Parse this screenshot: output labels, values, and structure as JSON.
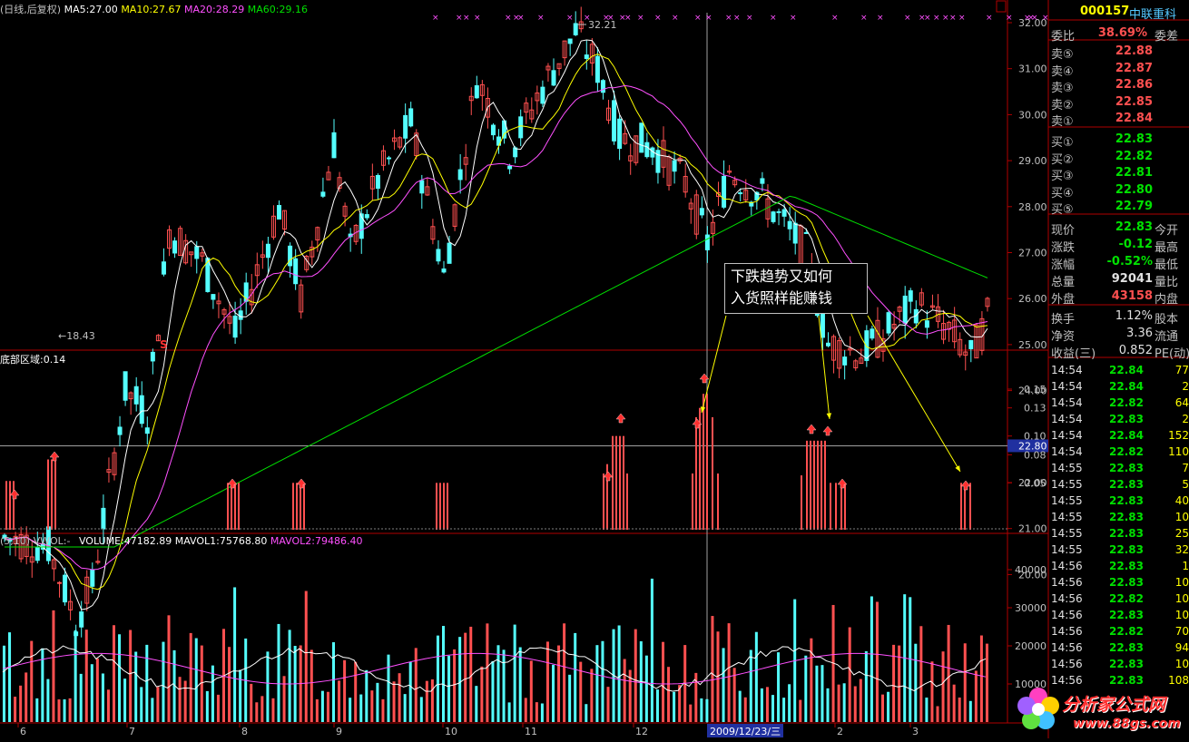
{
  "header": {
    "chart_type": "(日线,后复权)",
    "ma5": "MA5:27.00",
    "ma10": "MA10:27.67",
    "ma20": "MA20:28.29",
    "ma60": "MA60:29.16",
    "indicator_title": "底部区域:0.14",
    "volume_prefix": "(5,10)",
    "vwol": "VWOL:-",
    "volume": "VOLUME:47182.89",
    "mavol1": "MAVOL1:75768.80",
    "mavol2": "MAVOL2:79486.40"
  },
  "price_axis": {
    "ticks": [
      "32.00",
      "31.00",
      "30.00",
      "29.00",
      "28.00",
      "27.00",
      "26.00",
      "25.00",
      "24.00",
      "22.00",
      "21.00",
      "20.00"
    ],
    "current_label": "22.80",
    "high_marker": "32.21",
    "low_marker": "18.43"
  },
  "indicator_axis": {
    "ticks": [
      "0.15",
      "0.13",
      "0.10",
      "0.08",
      "0.05"
    ]
  },
  "volume_axis": {
    "ticks": [
      "40000",
      "30000",
      "20000",
      "10000"
    ]
  },
  "x_axis": {
    "months": [
      "6",
      "7",
      "8",
      "9",
      "10",
      "11",
      "12",
      "2",
      "3"
    ],
    "cursor_date": "2009/12/23/三"
  },
  "callout": {
    "line1": "下跌趋势又如何",
    "line2": "入货照样能赚钱"
  },
  "s_marker": "S",
  "sidebar": {
    "code": "000157",
    "name": "中联重科",
    "weibi_label": "委比",
    "weibi_value": "38.69%",
    "weicha_label": "委差",
    "sells": [
      {
        "label": "卖⑤",
        "price": "22.88"
      },
      {
        "label": "卖④",
        "price": "22.87"
      },
      {
        "label": "卖③",
        "price": "22.86"
      },
      {
        "label": "卖②",
        "price": "22.85"
      },
      {
        "label": "卖①",
        "price": "22.84"
      }
    ],
    "buys": [
      {
        "label": "买①",
        "price": "22.83"
      },
      {
        "label": "买②",
        "price": "22.82"
      },
      {
        "label": "买③",
        "price": "22.81"
      },
      {
        "label": "买④",
        "price": "22.80"
      },
      {
        "label": "买⑤",
        "price": "22.79"
      }
    ],
    "stats": [
      {
        "label": "现价",
        "value": "22.83",
        "label2": "今开",
        "color": "green"
      },
      {
        "label": "涨跌",
        "value": "-0.12",
        "label2": "最高",
        "color": "green"
      },
      {
        "label": "涨幅",
        "value": "-0.52%",
        "label2": "最低",
        "color": "green"
      },
      {
        "label": "总量",
        "value": "92041",
        "label2": "量比",
        "color": "white"
      },
      {
        "label": "外盘",
        "value": "43158",
        "label2": "内盘",
        "color": "red"
      }
    ],
    "stats2": [
      {
        "label": "换手",
        "value": "1.12%",
        "label2": "股本"
      },
      {
        "label": "净资",
        "value": "3.36",
        "label2": "流通"
      },
      {
        "label": "收益(三)",
        "value": "0.852",
        "label2": "PE(动)"
      }
    ],
    "ticks": [
      {
        "time": "14:54",
        "price": "22.84",
        "vol": "77",
        "c": "green"
      },
      {
        "time": "14:54",
        "price": "22.84",
        "vol": "2",
        "c": "green"
      },
      {
        "time": "14:54",
        "price": "22.82",
        "vol": "64",
        "c": "green"
      },
      {
        "time": "14:54",
        "price": "22.83",
        "vol": "2",
        "c": "green"
      },
      {
        "time": "14:54",
        "price": "22.84",
        "vol": "152",
        "c": "green"
      },
      {
        "time": "14:54",
        "price": "22.82",
        "vol": "110",
        "c": "green"
      },
      {
        "time": "14:55",
        "price": "22.83",
        "vol": "7",
        "c": "green"
      },
      {
        "time": "14:55",
        "price": "22.83",
        "vol": "5",
        "c": "green"
      },
      {
        "time": "14:55",
        "price": "22.83",
        "vol": "40",
        "c": "green"
      },
      {
        "time": "14:55",
        "price": "22.83",
        "vol": "10",
        "c": "green"
      },
      {
        "time": "14:55",
        "price": "22.83",
        "vol": "25",
        "c": "green"
      },
      {
        "time": "14:55",
        "price": "22.83",
        "vol": "32",
        "c": "green"
      },
      {
        "time": "14:56",
        "price": "22.83",
        "vol": "1",
        "c": "green"
      },
      {
        "time": "14:56",
        "price": "22.83",
        "vol": "10",
        "c": "green"
      },
      {
        "time": "14:56",
        "price": "22.82",
        "vol": "10",
        "c": "green"
      },
      {
        "time": "14:56",
        "price": "22.83",
        "vol": "10",
        "c": "green"
      },
      {
        "time": "14:56",
        "price": "22.82",
        "vol": "70",
        "c": "green"
      },
      {
        "time": "14:56",
        "price": "22.83",
        "vol": "94",
        "c": "green"
      },
      {
        "time": "14:56",
        "price": "22.83",
        "vol": "10",
        "c": "green"
      },
      {
        "time": "14:56",
        "price": "22.83",
        "vol": "108",
        "c": "green"
      }
    ]
  },
  "logo": {
    "text": "分析家公式网",
    "url": "www.88gs.com"
  },
  "colors": {
    "up": "#ff5050",
    "down": "#54ffff",
    "ma5": "#ffffff",
    "ma10": "#ffff00",
    "ma20": "#ff50ff",
    "ma60": "#00e000",
    "axis": "#b00000"
  }
}
